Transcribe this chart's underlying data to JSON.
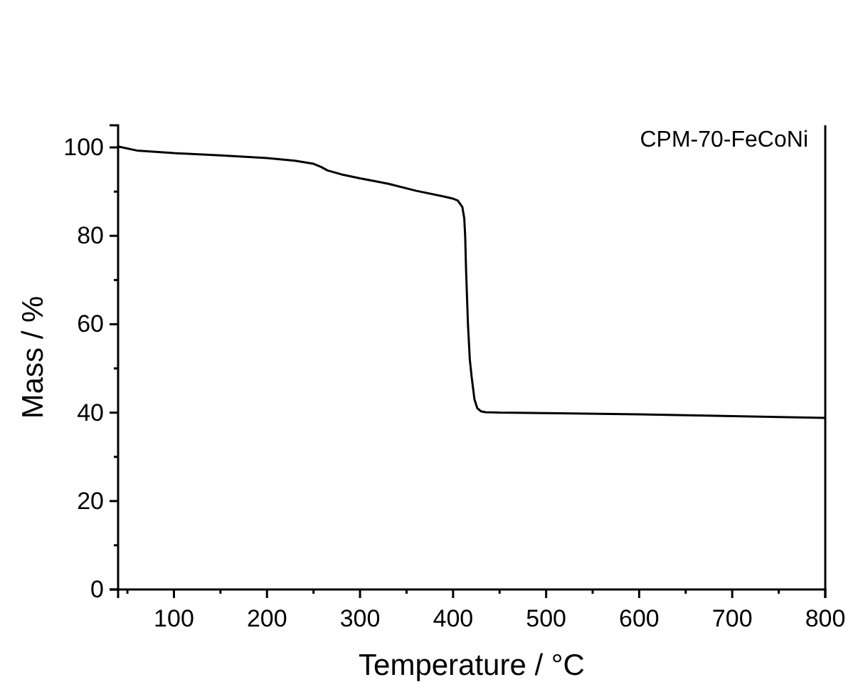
{
  "chart_data": {
    "type": "line",
    "xlabel": "Temperature / °C",
    "ylabel": "Mass / %",
    "annotations": [
      "CPM-70-FeCoNi"
    ],
    "x": [
      40,
      60,
      100,
      150,
      200,
      230,
      250,
      258,
      265,
      280,
      300,
      330,
      360,
      390,
      400,
      405,
      410,
      412,
      413,
      414,
      416,
      418,
      420,
      423,
      426,
      430,
      435,
      450,
      500,
      600,
      700,
      800
    ],
    "series": [
      {
        "color": "#000000",
        "values": [
          100.2,
          99.3,
          98.7,
          98.2,
          97.6,
          97.0,
          96.3,
          95.6,
          94.8,
          93.9,
          93.0,
          91.8,
          90.2,
          88.9,
          88.4,
          88.0,
          86.5,
          84,
          80,
          72,
          60,
          52,
          48,
          43,
          41,
          40.3,
          40.1,
          40.0,
          39.9,
          39.6,
          39.2,
          38.8
        ]
      }
    ],
    "xlim": [
      40,
      800
    ],
    "xticks": [
      100,
      200,
      300,
      400,
      500,
      600,
      700,
      800
    ],
    "ylim": [
      0,
      105
    ],
    "yticks": [
      0,
      20,
      40,
      60,
      80,
      100
    ],
    "marker": "none",
    "line_style": "solid"
  }
}
